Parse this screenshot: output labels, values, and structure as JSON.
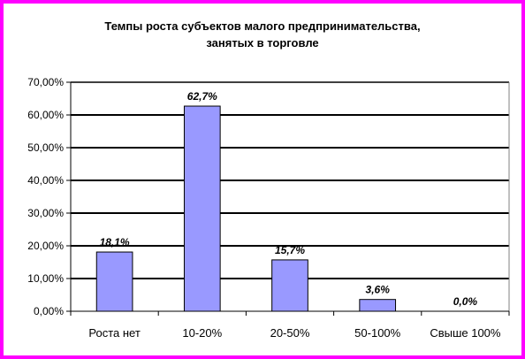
{
  "chart_data": {
    "type": "bar",
    "title_line1": "Темпы роста субъектов малого предпринимательства,",
    "title_line2": "занятых в торговле",
    "categories": [
      "Роста нет",
      "10-20%",
      "20-50%",
      "50-100%",
      "Свыше 100%"
    ],
    "values": [
      18.1,
      62.7,
      15.7,
      3.6,
      0.0
    ],
    "data_labels": [
      "18,1%",
      "62,7%",
      "15,7%",
      "3,6%",
      "0,0%"
    ],
    "yticks": [
      0,
      10,
      20,
      30,
      40,
      50,
      60,
      70
    ],
    "ytick_labels": [
      "0,00%",
      "10,00%",
      "20,00%",
      "30,00%",
      "40,00%",
      "50,00%",
      "60,00%",
      "70,00%"
    ],
    "ylim": [
      0,
      70
    ],
    "xlabel": "",
    "ylabel": "",
    "grid": true,
    "legend": "none",
    "bar_color": "#9999ff",
    "bar_edge_color": "#000000",
    "frame_color": "#ff00ff"
  }
}
